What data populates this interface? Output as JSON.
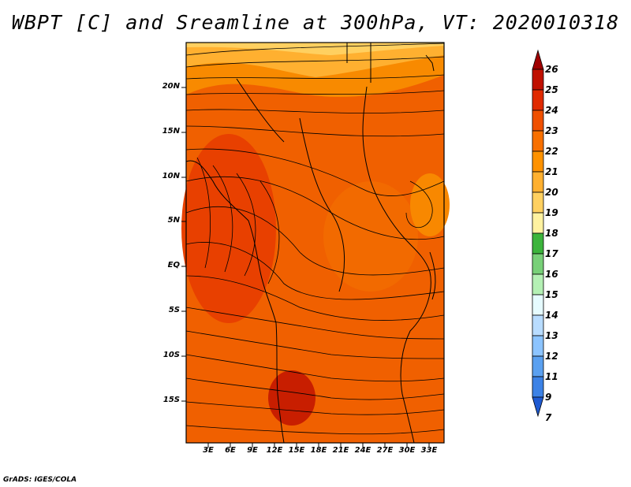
{
  "title": "WBPT [C] and Sreamline at 300hPa, VT: 2020010318",
  "credit": "GrADS: IGES/COLA",
  "lat_labels": [
    "20N",
    "15N",
    "10N",
    "5N",
    "EQ",
    "5S",
    "10S",
    "15S"
  ],
  "lon_labels": [
    "3E",
    "6E",
    "9E",
    "12E",
    "15E",
    "18E",
    "21E",
    "24E",
    "27E",
    "30E",
    "33E"
  ],
  "colorbar": {
    "labels": [
      "26",
      "25",
      "24",
      "23",
      "22",
      "21",
      "20",
      "19",
      "18",
      "17",
      "16",
      "15",
      "14",
      "13",
      "12",
      "11",
      "9",
      "7"
    ],
    "colors": [
      "#a00000",
      "#c01000",
      "#e02a00",
      "#f05000",
      "#f87000",
      "#ff9200",
      "#ffb030",
      "#ffd060",
      "#fff2a0",
      "#3cb43c",
      "#78d078",
      "#b4f0b4",
      "#e6fbff",
      "#b8dcff",
      "#8cc4ff",
      "#5aa0f0",
      "#3c82e6",
      "#1e5ad2"
    ]
  }
}
